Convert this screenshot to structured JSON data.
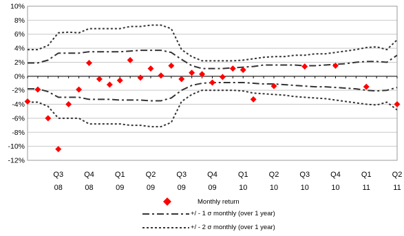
{
  "chart_data": {
    "type": "line",
    "ylim": [
      -12,
      10
    ],
    "yticks": [
      "10%",
      "8%",
      "6%",
      "4%",
      "2%",
      "0%",
      "-2%",
      "-4%",
      "-6%",
      "-8%",
      "-10%",
      "-12%"
    ],
    "ytick_values": [
      10,
      8,
      6,
      4,
      2,
      0,
      -2,
      -4,
      -6,
      -8,
      -10,
      -12
    ],
    "quarter_labels": [
      {
        "q": "Q3",
        "y": "08"
      },
      {
        "q": "Q4",
        "y": "08"
      },
      {
        "q": "Q1",
        "y": "09"
      },
      {
        "q": "Q2",
        "y": "09"
      },
      {
        "q": "Q3",
        "y": "09"
      },
      {
        "q": "Q4",
        "y": "09"
      },
      {
        "q": "Q1",
        "y": "10"
      },
      {
        "q": "Q2",
        "y": "10"
      },
      {
        "q": "Q3",
        "y": "10"
      },
      {
        "q": "Q4",
        "y": "10"
      },
      {
        "q": "Q1",
        "y": "11"
      },
      {
        "q": "Q2",
        "y": "11"
      }
    ],
    "grid": true,
    "series": [
      {
        "name": "Monthly return",
        "style": "diamond-markers",
        "color": "#ff0000",
        "x": [
          0,
          1,
          2,
          3,
          4,
          5,
          6,
          7,
          8,
          9,
          10,
          11,
          12,
          13,
          14,
          15,
          16,
          17,
          18,
          19,
          20,
          21,
          22,
          24,
          27,
          30,
          33,
          36
        ],
        "values": [
          -3.6,
          -1.9,
          -6.0,
          -10.4,
          -4.0,
          -1.9,
          1.9,
          -0.4,
          -1.2,
          -0.6,
          2.3,
          -0.2,
          1.1,
          0.1,
          1.5,
          -0.4,
          0.5,
          0.3,
          -0.9,
          -0.1,
          1.1,
          0.9,
          -3.3,
          -1.4,
          1.4,
          1.5,
          -1.5,
          -4.0
        ]
      },
      {
        "name": "+/ - 1 σ monthly (over 1 year)",
        "style": "dash-dot",
        "color": "#333333",
        "x": [
          0,
          1,
          2,
          3,
          4,
          5,
          6,
          7,
          8,
          9,
          10,
          11,
          12,
          13,
          14,
          15,
          16,
          17,
          18,
          19,
          20,
          21,
          22,
          23,
          24,
          25,
          26,
          27,
          28,
          29,
          30,
          31,
          32,
          33,
          34,
          35,
          36
        ],
        "upper": [
          1.9,
          1.9,
          2.3,
          3.3,
          3.3,
          3.3,
          3.5,
          3.5,
          3.5,
          3.5,
          3.6,
          3.7,
          3.7,
          3.7,
          3.4,
          2.4,
          1.5,
          1.1,
          1.1,
          1.1,
          1.2,
          1.3,
          1.4,
          1.6,
          1.6,
          1.6,
          1.6,
          1.5,
          1.5,
          1.6,
          1.7,
          1.8,
          2.0,
          2.1,
          2.1,
          2.0,
          3.0
        ],
        "lower": [
          -1.8,
          -1.8,
          -2.2,
          -3.0,
          -3.0,
          -3.0,
          -3.3,
          -3.3,
          -3.3,
          -3.4,
          -3.4,
          -3.4,
          -3.5,
          -3.5,
          -3.1,
          -2.0,
          -1.3,
          -1.0,
          -0.9,
          -0.9,
          -0.9,
          -0.9,
          -1.0,
          -1.1,
          -1.1,
          -1.2,
          -1.3,
          -1.4,
          -1.5,
          -1.5,
          -1.6,
          -1.7,
          -1.8,
          -2.0,
          -2.1,
          -2.0,
          -1.6
        ]
      },
      {
        "name": "+/ - 2 σ monthly (over 1 year)",
        "style": "dotted",
        "color": "#333333",
        "x": [
          0,
          1,
          2,
          3,
          4,
          5,
          6,
          7,
          8,
          9,
          10,
          11,
          12,
          13,
          14,
          15,
          16,
          17,
          18,
          19,
          20,
          21,
          22,
          23,
          24,
          25,
          26,
          27,
          28,
          29,
          30,
          31,
          32,
          33,
          34,
          35,
          36
        ],
        "upper": [
          3.8,
          3.8,
          4.4,
          6.2,
          6.3,
          6.2,
          6.8,
          6.8,
          6.8,
          6.8,
          7.1,
          7.1,
          7.3,
          7.3,
          6.8,
          3.8,
          2.8,
          2.2,
          2.2,
          2.2,
          2.2,
          2.3,
          2.5,
          2.7,
          2.8,
          2.8,
          3.0,
          3.0,
          3.2,
          3.2,
          3.4,
          3.6,
          3.8,
          4.1,
          4.2,
          3.8,
          5.2
        ],
        "lower": [
          -3.7,
          -3.7,
          -4.3,
          -6.0,
          -6.0,
          -6.0,
          -6.8,
          -6.8,
          -6.8,
          -6.8,
          -7.0,
          -7.0,
          -7.2,
          -7.2,
          -6.6,
          -3.6,
          -2.6,
          -2.0,
          -2.0,
          -2.0,
          -2.0,
          -2.1,
          -2.4,
          -2.5,
          -2.6,
          -2.7,
          -2.9,
          -3.0,
          -3.1,
          -3.2,
          -3.4,
          -3.6,
          -3.8,
          -4.0,
          -4.1,
          -3.7,
          -4.8
        ]
      }
    ]
  }
}
